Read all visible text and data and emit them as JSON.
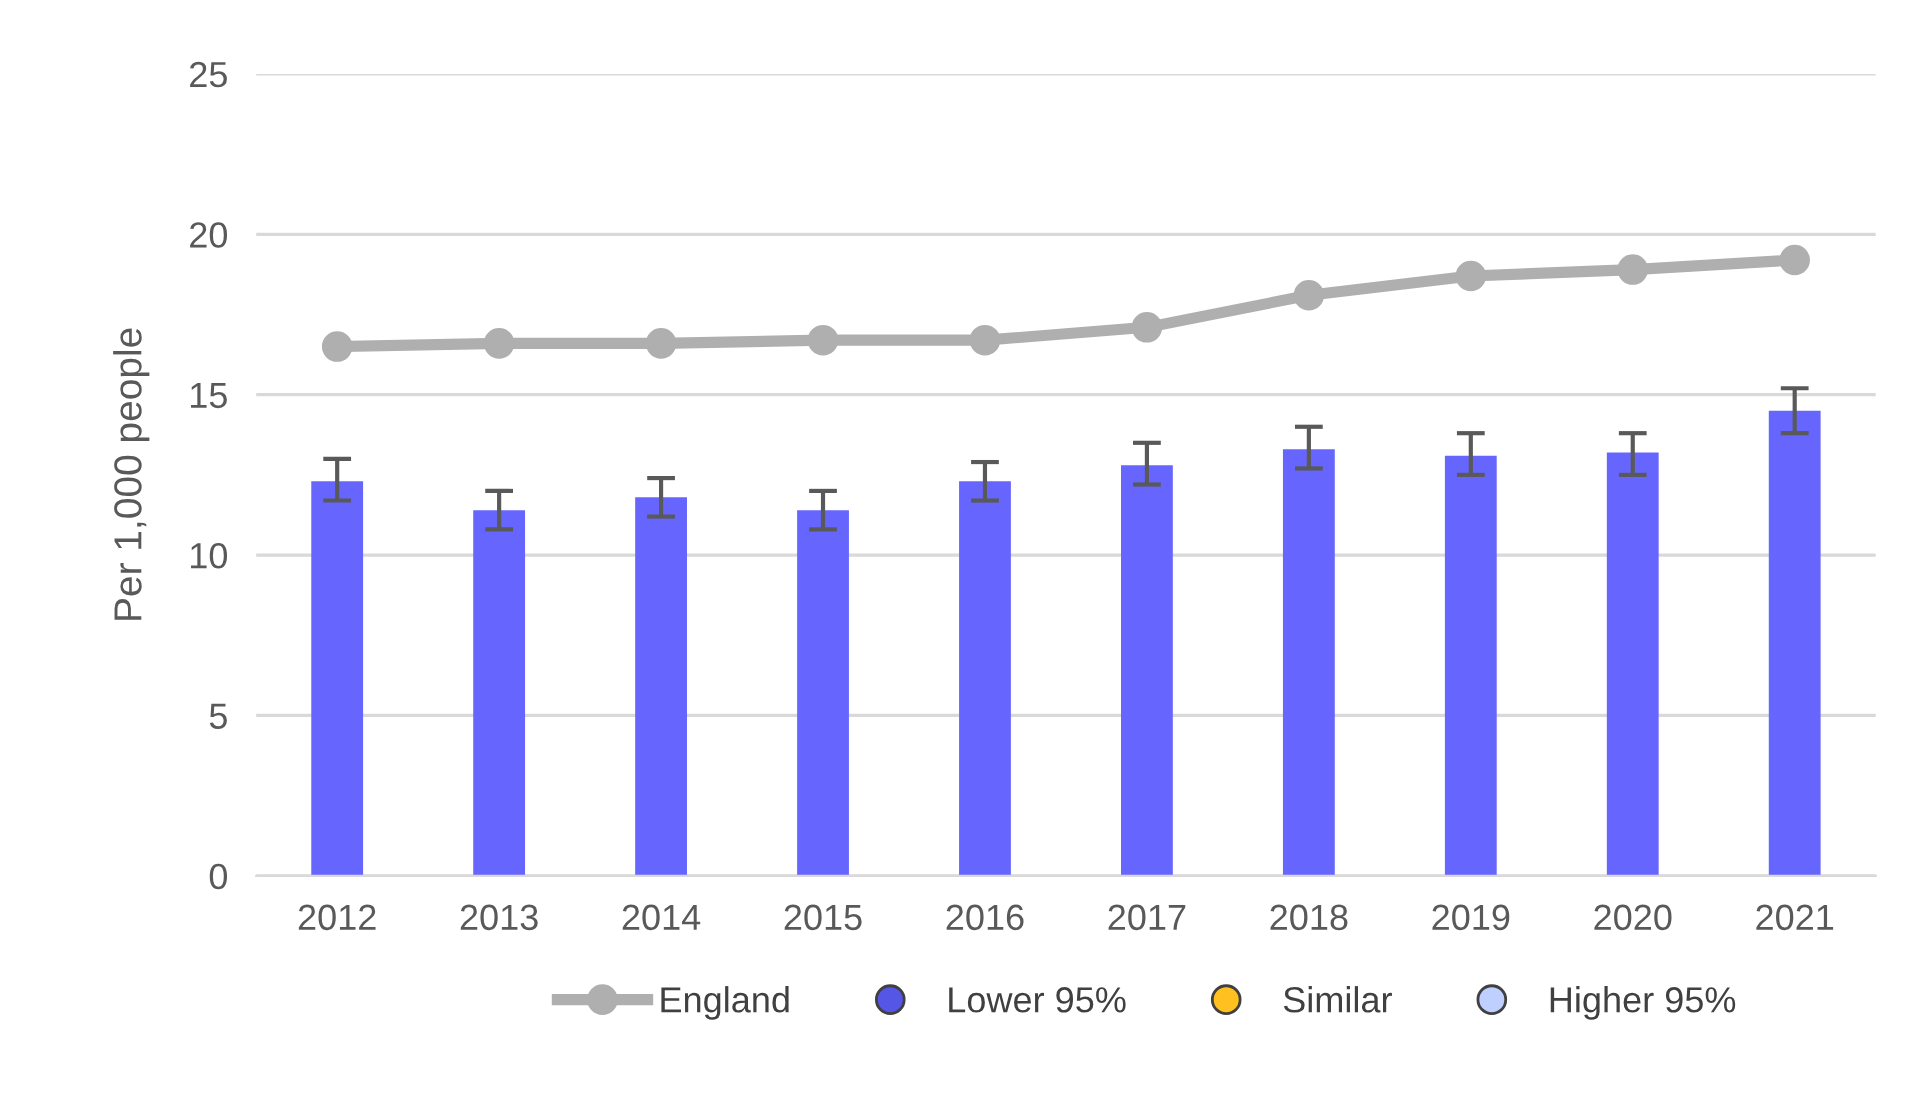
{
  "chart_data": {
    "type": "bar",
    "ylabel": "Per 1,000 people",
    "categories": [
      "2012",
      "2013",
      "2014",
      "2015",
      "2016",
      "2017",
      "2018",
      "2019",
      "2020",
      "2021"
    ],
    "series": [
      {
        "color": "#6666ff",
        "values": [
          12.3,
          11.4,
          11.8,
          11.4,
          12.3,
          12.8,
          13.3,
          13.1,
          13.2,
          14.5
        ],
        "errors": [
          [
            11.7,
            13.0
          ],
          [
            10.8,
            12.0
          ],
          [
            11.2,
            12.4
          ],
          [
            10.8,
            12.0
          ],
          [
            11.7,
            12.9
          ],
          [
            12.2,
            13.5
          ],
          [
            12.7,
            14.0
          ],
          [
            12.5,
            13.8
          ],
          [
            12.5,
            13.8
          ],
          [
            13.8,
            15.2
          ]
        ]
      },
      {
        "type": "line",
        "name": "England",
        "color": "#afafaf",
        "marker": "circle",
        "values": [
          16.5,
          16.6,
          16.6,
          16.7,
          16.7,
          17.1,
          18.1,
          18.7,
          18.9,
          19.2
        ]
      },
      {
        "type": "scatter",
        "name": "Lower 95%",
        "color": "#5555e6",
        "values": [
          null,
          null,
          null,
          null,
          null,
          null,
          null,
          null,
          null,
          null
        ]
      },
      {
        "type": "scatter",
        "name": "Similar",
        "color": "#ffc020",
        "values": [
          null,
          null,
          null,
          null,
          null,
          null,
          null,
          null,
          null,
          null
        ]
      },
      {
        "type": "scatter",
        "name": "Higher 95%",
        "color": "#bfcfff",
        "values": [
          null,
          null,
          null,
          null,
          null,
          null,
          null,
          null,
          null,
          null
        ]
      }
    ],
    "ylim": [
      0,
      25
    ],
    "yticks": [
      0,
      5,
      10,
      15,
      20,
      25
    ],
    "grid": "y",
    "legend": "bottom"
  }
}
